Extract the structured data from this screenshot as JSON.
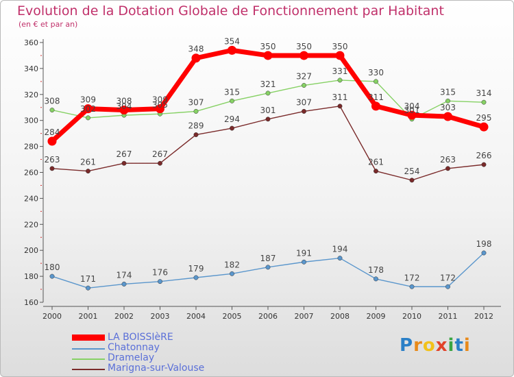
{
  "brand_letters": [
    {
      "ch": "P",
      "color": "#2a7fc7"
    },
    {
      "ch": "r",
      "color": "#e88a1a"
    },
    {
      "ch": "o",
      "color": "#f2c21a"
    },
    {
      "ch": "x",
      "color": "#e2432a"
    },
    {
      "ch": "i",
      "color": "#3aa542"
    },
    {
      "ch": "t",
      "color": "#2a7fc7"
    },
    {
      "ch": "i",
      "color": "#e88a1a"
    }
  ],
  "chart_data": {
    "type": "line",
    "title": "Evolution de la Dotation Globale de Fonctionnement par Habitant",
    "subtitle": "(en € et par an)",
    "xlabel": "",
    "ylabel": "",
    "categories": [
      "2000",
      "2001",
      "2002",
      "2003",
      "2004",
      "2005",
      "2006",
      "2007",
      "2008",
      "2009",
      "2010",
      "2011",
      "2012"
    ],
    "ylim": [
      160,
      360
    ],
    "yticks": [
      160,
      180,
      200,
      220,
      240,
      260,
      280,
      300,
      320,
      340,
      360
    ],
    "grid": false,
    "legend_position": "bottom-left",
    "series": [
      {
        "name": "LA BOISSIèRE",
        "color": "#ff0000",
        "values": [
          284,
          309,
          308,
          309,
          348,
          354,
          350,
          350,
          350,
          311,
          304,
          303,
          295
        ]
      },
      {
        "name": "Chatonnay",
        "color": "#5a96cc",
        "values": [
          180,
          171,
          174,
          176,
          179,
          182,
          187,
          191,
          194,
          178,
          172,
          172,
          198
        ]
      },
      {
        "name": "Dramelay",
        "color": "#86d164",
        "values": [
          308,
          302,
          304,
          305,
          307,
          315,
          321,
          327,
          331,
          330,
          301,
          315,
          314
        ]
      },
      {
        "name": "Marigna-sur-Valouse",
        "color": "#7a2a2a",
        "values": [
          263,
          261,
          267,
          267,
          289,
          294,
          301,
          307,
          311,
          261,
          254,
          263,
          266
        ]
      }
    ]
  }
}
